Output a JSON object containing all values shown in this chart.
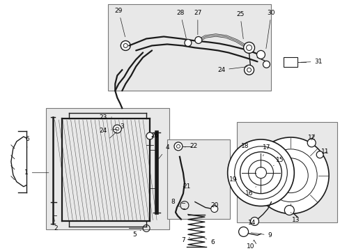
{
  "bg_color": "#ffffff",
  "fig_width": 4.89,
  "fig_height": 3.6,
  "dpi": 100,
  "line_color": "#1a1a1a",
  "text_color": "#000000",
  "box_fill": "#e8e8e8",
  "font_size": 6.5,
  "font_size_sm": 5.5,
  "lw_thick": 1.6,
  "lw_med": 1.0,
  "lw_thin": 0.6
}
